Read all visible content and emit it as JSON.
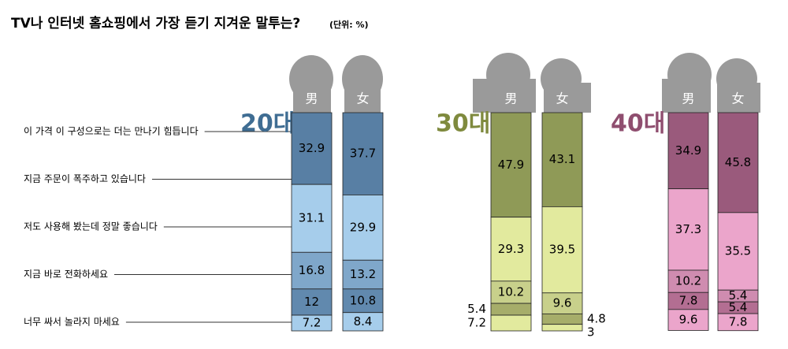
{
  "chart_data": {
    "type": "stacked-bar",
    "title": "TV나 인터넷 홈쇼핑에서 가장 듣기 지겨운 말투는?",
    "subtitle": "(단위: %)",
    "categories": [
      "이 가격 이 구성으로는 더는 만나기 힘듭니다",
      "지금 주문이 폭주하고 있습니다",
      "저도 사용해 봤는데 정말 좋습니다",
      "지금 바로 전화하세요",
      "너무 싸서 놀라지 마세요"
    ],
    "ylim": [
      0,
      100
    ],
    "groups": [
      {
        "name": "20대",
        "color": "#3f6d93",
        "colors": [
          "#587fa4",
          "#a6cdeb",
          "#7fa7ca",
          "#6189ae",
          "#a6cdeb"
        ],
        "series": [
          {
            "name": "男",
            "values": [
              32.9,
              31.1,
              16.8,
              12,
              7.2
            ]
          },
          {
            "name": "女",
            "values": [
              37.7,
              29.9,
              13.2,
              10.8,
              8.4
            ]
          }
        ]
      },
      {
        "name": "30대",
        "color": "#7f8a3e",
        "colors": [
          "#8f9a57",
          "#e2ea9e",
          "#c8d08b",
          "#a6ad6a",
          "#e2ea9e"
        ],
        "series": [
          {
            "name": "男",
            "values": [
              47.9,
              29.3,
              10.2,
              5.4,
              7.2
            ]
          },
          {
            "name": "女",
            "values": [
              43.1,
              39.5,
              9.6,
              4.8,
              3
            ]
          }
        ]
      },
      {
        "name": "40대",
        "color": "#8f4e6f",
        "colors": [
          "#9a5a7c",
          "#eba5cb",
          "#cf8cb0",
          "#b36e92",
          "#eba5cb"
        ],
        "series": [
          {
            "name": "男",
            "values": [
              34.9,
              37.3,
              10.2,
              7.8,
              9.6
            ]
          },
          {
            "name": "女",
            "values": [
              45.8,
              35.5,
              5.4,
              5.4,
              7.8
            ]
          }
        ]
      }
    ]
  }
}
